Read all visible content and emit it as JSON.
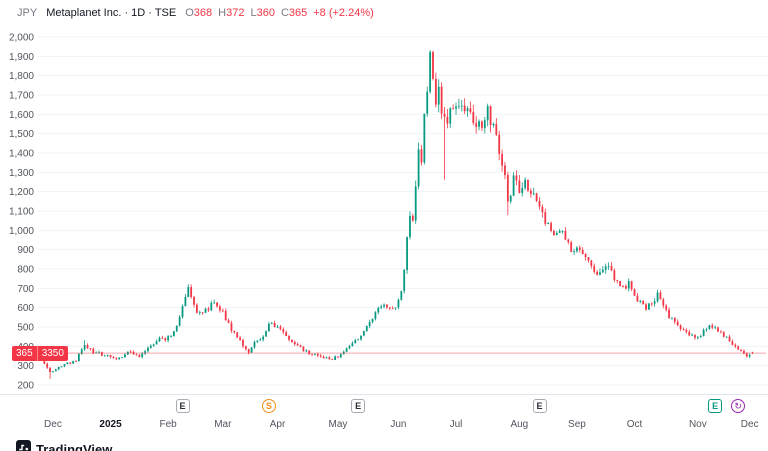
{
  "header": {
    "currency": "JPY",
    "title": "Metaplanet Inc. · 1D · TSE",
    "ohlc": [
      {
        "k": "O",
        "v": "368"
      },
      {
        "k": "H",
        "v": "372"
      },
      {
        "k": "L",
        "v": "360"
      },
      {
        "k": "C",
        "v": "365"
      }
    ],
    "change": "+8 (+2.24%)"
  },
  "footer": {
    "logo": "TradingView"
  },
  "colors": {
    "up": "#089981",
    "down": "#f23645",
    "grid": "#f0f3fa",
    "axis_text": "#51555e",
    "axis_text_strong": "#131722",
    "separator": "#e0e3eb",
    "badge_gray_border": "#a8abb3",
    "badge_teal": "#089981",
    "badge_orange": "#f28e1c",
    "badge_purple": "#9c27b0"
  },
  "chart_data": {
    "type": "candlestick",
    "symbol": "Metaplanet Inc.",
    "interval": "1D",
    "exchange": "TSE",
    "currency": "JPY",
    "last": {
      "open": 368,
      "high": 372,
      "low": 360,
      "close": 365,
      "change": "+8 (+2.24%)"
    },
    "ylim": [
      200,
      2000
    ],
    "y_tick_step": 100,
    "days": 248,
    "x_ticks": [
      {
        "label": "Dec",
        "day": 4,
        "bold": false
      },
      {
        "label": "2025",
        "day": 24,
        "bold": true
      },
      {
        "label": "Feb",
        "day": 44,
        "bold": false
      },
      {
        "label": "Mar",
        "day": 63,
        "bold": false
      },
      {
        "label": "Apr",
        "day": 82,
        "bold": false
      },
      {
        "label": "May",
        "day": 103,
        "bold": false
      },
      {
        "label": "Jun",
        "day": 124,
        "bold": false
      },
      {
        "label": "Jul",
        "day": 144,
        "bold": false
      },
      {
        "label": "Aug",
        "day": 166,
        "bold": false
      },
      {
        "label": "Sep",
        "day": 186,
        "bold": false
      },
      {
        "label": "Oct",
        "day": 206,
        "bold": false
      },
      {
        "label": "Nov",
        "day": 228,
        "bold": false
      },
      {
        "label": "Dec",
        "day": 246,
        "bold": false
      }
    ],
    "trend_anchors": [
      [
        0,
        330
      ],
      [
        3,
        262
      ],
      [
        5,
        285
      ],
      [
        7,
        300
      ],
      [
        10,
        315
      ],
      [
        12,
        330
      ],
      [
        15,
        412
      ],
      [
        18,
        372
      ],
      [
        22,
        352
      ],
      [
        26,
        336
      ],
      [
        30,
        366
      ],
      [
        34,
        352
      ],
      [
        38,
        400
      ],
      [
        41,
        445
      ],
      [
        43,
        430
      ],
      [
        46,
        470
      ],
      [
        48,
        560
      ],
      [
        50,
        650
      ],
      [
        51,
        700
      ],
      [
        52,
        645
      ],
      [
        54,
        585
      ],
      [
        56,
        565
      ],
      [
        58,
        600
      ],
      [
        60,
        640
      ],
      [
        62,
        600
      ],
      [
        64,
        540
      ],
      [
        66,
        490
      ],
      [
        68,
        450
      ],
      [
        70,
        410
      ],
      [
        72,
        365
      ],
      [
        74,
        420
      ],
      [
        77,
        460
      ],
      [
        79,
        515
      ],
      [
        82,
        500
      ],
      [
        84,
        470
      ],
      [
        86,
        440
      ],
      [
        88,
        410
      ],
      [
        90,
        390
      ],
      [
        93,
        365
      ],
      [
        96,
        350
      ],
      [
        100,
        332
      ],
      [
        103,
        348
      ],
      [
        106,
        385
      ],
      [
        109,
        430
      ],
      [
        112,
        480
      ],
      [
        115,
        545
      ],
      [
        117,
        585
      ],
      [
        119,
        620
      ],
      [
        121,
        585
      ],
      [
        123,
        600
      ],
      [
        125,
        680
      ],
      [
        126,
        800
      ],
      [
        127,
        980
      ],
      [
        128,
        1100
      ],
      [
        129,
        1050
      ],
      [
        130,
        1250
      ],
      [
        131,
        1400
      ],
      [
        132,
        1340
      ],
      [
        133,
        1600
      ],
      [
        134,
        1740
      ],
      [
        135,
        1890
      ],
      [
        136,
        1820
      ],
      [
        137,
        1660
      ],
      [
        138,
        1700
      ],
      [
        139,
        1590
      ],
      [
        140,
        1600
      ],
      [
        141,
        1545
      ],
      [
        142,
        1600
      ],
      [
        143,
        1655
      ],
      [
        145,
        1605
      ],
      [
        147,
        1655
      ],
      [
        149,
        1580
      ],
      [
        151,
        1505
      ],
      [
        153,
        1560
      ],
      [
        155,
        1620
      ],
      [
        157,
        1545
      ],
      [
        159,
        1430
      ],
      [
        161,
        1280
      ],
      [
        162,
        1160
      ],
      [
        164,
        1255
      ],
      [
        166,
        1225
      ],
      [
        168,
        1250
      ],
      [
        170,
        1195
      ],
      [
        172,
        1145
      ],
      [
        174,
        1095
      ],
      [
        176,
        1020
      ],
      [
        178,
        960
      ],
      [
        180,
        1000
      ],
      [
        182,
        950
      ],
      [
        184,
        905
      ],
      [
        186,
        905
      ],
      [
        188,
        860
      ],
      [
        190,
        830
      ],
      [
        193,
        780
      ],
      [
        196,
        825
      ],
      [
        199,
        760
      ],
      [
        202,
        705
      ],
      [
        204,
        725
      ],
      [
        206,
        660
      ],
      [
        208,
        620
      ],
      [
        210,
        585
      ],
      [
        212,
        630
      ],
      [
        214,
        665
      ],
      [
        216,
        620
      ],
      [
        218,
        560
      ],
      [
        220,
        525
      ],
      [
        222,
        495
      ],
      [
        224,
        478
      ],
      [
        226,
        452
      ],
      [
        228,
        440
      ],
      [
        230,
        478
      ],
      [
        232,
        518
      ],
      [
        234,
        500
      ],
      [
        236,
        470
      ],
      [
        238,
        442
      ],
      [
        240,
        408
      ],
      [
        242,
        378
      ],
      [
        244,
        360
      ],
      [
        245,
        345
      ],
      [
        246,
        362
      ],
      [
        247,
        365
      ]
    ],
    "overrides": {
      "3": {
        "low": 232
      },
      "15": {
        "high": 432
      },
      "51": {
        "high": 722
      },
      "135": {
        "high": 1932
      },
      "140": {
        "low": 1262
      },
      "162": {
        "low": 1078
      },
      "247": {
        "open": 368,
        "high": 372,
        "low": 360,
        "close": 365
      }
    },
    "price_line": {
      "price": 365,
      "label": "365",
      "countdown": "3350"
    },
    "events": [
      {
        "day": 49,
        "label": "E",
        "style": "gray",
        "name": "earnings-marker"
      },
      {
        "day": 79,
        "label": "S",
        "style": "orange",
        "name": "split-marker"
      },
      {
        "day": 110,
        "label": "E",
        "style": "gray",
        "name": "earnings-marker"
      },
      {
        "day": 173,
        "label": "E",
        "style": "gray",
        "name": "earnings-marker"
      },
      {
        "day": 234,
        "label": "E",
        "style": "teal",
        "name": "earnings-upcoming-marker"
      },
      {
        "day": 242,
        "label": "↻",
        "style": "purple",
        "name": "event-marker"
      }
    ]
  }
}
